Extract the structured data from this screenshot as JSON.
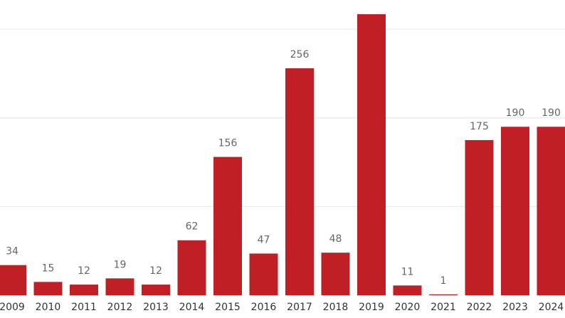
{
  "chart_data": {
    "type": "bar",
    "categories": [
      "2009",
      "2010",
      "2011",
      "2012",
      "2013",
      "2014",
      "2015",
      "2016",
      "2017",
      "2018",
      "2019",
      "2020",
      "2021",
      "2022",
      "2023",
      "2024"
    ],
    "values": [
      34,
      15,
      12,
      19,
      12,
      62,
      156,
      47,
      256,
      48,
      317,
      11,
      1,
      175,
      190,
      190
    ],
    "color": "#c11f26",
    "ylim": [
      0,
      333
    ],
    "yticks": [
      100,
      200,
      300
    ],
    "grid": true
  }
}
